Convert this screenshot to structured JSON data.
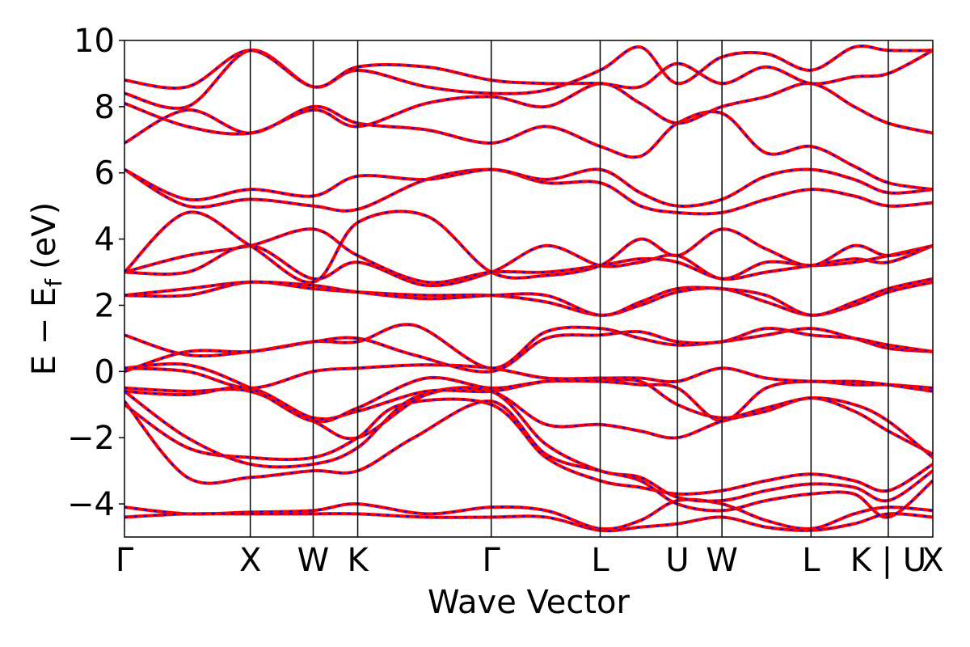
{
  "chart_data": {
    "type": "line",
    "title": "",
    "xlabel": "Wave Vector",
    "ylabel": "E − E",
    "ylabel_subscript": "f",
    "ylabel_unit": "(eV)",
    "ylim": [
      -5,
      10
    ],
    "yticks": [
      -4,
      -2,
      0,
      2,
      4,
      6,
      8,
      10
    ],
    "ytick_labels": [
      "−4",
      "−2",
      "0",
      "2",
      "4",
      "6",
      "8",
      "10"
    ],
    "k_path": {
      "labels": [
        "Γ",
        "X",
        "W",
        "K",
        "Γ",
        "L",
        "U",
        "W",
        "L",
        "K | U",
        "X"
      ],
      "positions": [
        0,
        1,
        1.5,
        1.854,
        2.915,
        3.781,
        4.395,
        4.749,
        5.457,
        6.071,
        6.425
      ]
    },
    "grid": false,
    "legend": "none",
    "series_styles": [
      {
        "color": "#ff0000",
        "linestyle": "solid"
      },
      {
        "color": "#0000ff",
        "linestyle": "dashed"
      }
    ],
    "bands": [
      {
        "x": [
          0,
          0.5,
          1,
          1.5,
          1.854,
          2.4,
          2.915,
          3.35,
          3.781,
          4.1,
          4.395,
          4.749,
          5.1,
          5.457,
          5.8,
          6.071,
          6.425
        ],
        "y": [
          -4.1,
          -4.3,
          -4.25,
          -4.2,
          -4.0,
          -4.3,
          -4.1,
          -4.2,
          -4.75,
          -4.5,
          -3.9,
          -4.0,
          -4.5,
          -4.75,
          -4.3,
          -4.1,
          -4.2
        ]
      },
      {
        "x": [
          0,
          0.5,
          1,
          1.5,
          1.854,
          2.4,
          2.915,
          3.35,
          3.781,
          4.1,
          4.395,
          4.749,
          5.1,
          5.457,
          5.8,
          6.071,
          6.425
        ],
        "y": [
          -4.4,
          -4.3,
          -4.3,
          -4.3,
          -4.3,
          -4.4,
          -4.4,
          -4.4,
          -4.8,
          -4.7,
          -4.6,
          -4.4,
          -4.7,
          -4.8,
          -4.6,
          -4.3,
          -4.4
        ]
      },
      {
        "x": [
          0,
          0.5,
          1,
          1.5,
          1.854,
          2.2,
          2.915,
          3.35,
          3.781,
          4.1,
          4.395,
          4.749,
          5.1,
          5.457,
          5.8,
          6.071,
          6.425
        ],
        "y": [
          -1.0,
          -2.3,
          -2.6,
          -2.6,
          -2.0,
          -1.0,
          -1.0,
          -2.6,
          -3.3,
          -3.5,
          -3.7,
          -3.6,
          -3.3,
          -3.1,
          -3.3,
          -3.6,
          -2.8
        ]
      },
      {
        "x": [
          0,
          0.5,
          1,
          1.5,
          1.854,
          2.3,
          2.915,
          3.35,
          3.781,
          4.1,
          4.395,
          4.749,
          5.1,
          5.457,
          5.8,
          6.071,
          6.425
        ],
        "y": [
          -0.6,
          -2.0,
          -2.8,
          -2.8,
          -2.3,
          -0.8,
          -0.6,
          -2.2,
          -3.0,
          -3.2,
          -3.8,
          -3.9,
          -3.6,
          -3.4,
          -3.5,
          -3.9,
          -3.0
        ]
      },
      {
        "x": [
          0,
          0.5,
          1,
          1.5,
          1.854,
          2.3,
          2.915,
          3.35,
          3.781,
          4.1,
          4.395,
          4.749,
          5.1,
          5.457,
          5.8,
          6.071,
          6.425
        ],
        "y": [
          -0.9,
          -3.2,
          -3.2,
          -3.0,
          -3.0,
          -2.0,
          -0.9,
          -2.5,
          -3.0,
          -3.3,
          -4.0,
          -4.2,
          -3.9,
          -3.7,
          -3.7,
          -4.4,
          -3.3
        ]
      },
      {
        "x": [
          0,
          0.5,
          1,
          1.5,
          1.854,
          2.4,
          2.915,
          3.35,
          3.781,
          4.1,
          4.395,
          4.749,
          5.1,
          5.457,
          5.8,
          6.071,
          6.425
        ],
        "y": [
          -0.5,
          -0.6,
          -0.6,
          -1.5,
          -2.0,
          -0.7,
          -0.6,
          -1.6,
          -1.6,
          -1.8,
          -2.0,
          -1.5,
          -1.2,
          -0.8,
          -1.2,
          -1.8,
          -2.5
        ]
      },
      {
        "x": [
          0,
          0.5,
          1,
          1.5,
          1.854,
          2.4,
          2.915,
          3.35,
          3.781,
          4.1,
          4.395,
          4.749,
          5.1,
          5.457,
          5.8,
          6.071,
          6.425
        ],
        "y": [
          -0.6,
          -0.7,
          -0.5,
          -1.4,
          -1.2,
          -0.6,
          -0.6,
          -0.3,
          -0.3,
          -0.3,
          -1.0,
          -1.4,
          -1.1,
          -0.8,
          -1.0,
          -1.5,
          -2.6
        ]
      },
      {
        "x": [
          0,
          0.5,
          1,
          1.5,
          1.854,
          2.4,
          2.915,
          3.35,
          3.781,
          4.1,
          4.395,
          4.749,
          5.1,
          5.457,
          5.8,
          6.071,
          6.425
        ],
        "y": [
          0.1,
          0.2,
          -0.5,
          -1.5,
          -1.1,
          -0.2,
          -0.5,
          -0.3,
          -0.3,
          -0.4,
          -0.5,
          -1.5,
          -0.5,
          -0.3,
          -0.4,
          -0.4,
          -0.5
        ]
      },
      {
        "x": [
          0,
          0.5,
          1,
          1.5,
          1.854,
          2.4,
          2.915,
          3.35,
          3.781,
          4.1,
          4.395,
          4.749,
          5.1,
          5.457,
          5.8,
          6.071,
          6.425
        ],
        "y": [
          0.1,
          0.0,
          -0.5,
          0.0,
          0.1,
          0.2,
          0.1,
          -0.2,
          -0.2,
          -0.2,
          -0.3,
          0.1,
          -0.2,
          -0.3,
          -0.3,
          -0.4,
          -0.6
        ]
      },
      {
        "x": [
          0,
          0.5,
          1,
          1.5,
          1.854,
          2.3,
          2.915,
          3.35,
          3.781,
          4.1,
          4.395,
          4.749,
          5.1,
          5.457,
          5.8,
          6.071,
          6.425
        ],
        "y": [
          1.1,
          0.5,
          0.6,
          0.9,
          0.9,
          1.4,
          0.1,
          1.2,
          1.3,
          1.0,
          0.8,
          0.9,
          1.1,
          1.3,
          1.0,
          0.7,
          0.6
        ]
      },
      {
        "x": [
          0,
          0.5,
          1,
          1.5,
          1.854,
          2.3,
          2.915,
          3.35,
          3.781,
          4.1,
          4.395,
          4.749,
          5.1,
          5.457,
          5.8,
          6.071,
          6.425
        ],
        "y": [
          0.0,
          0.6,
          0.6,
          0.9,
          1.0,
          0.5,
          0.0,
          1.0,
          1.1,
          1.2,
          0.9,
          0.9,
          1.3,
          1.1,
          1.0,
          0.8,
          0.6
        ]
      },
      {
        "x": [
          0,
          0.5,
          1,
          1.5,
          1.854,
          2.4,
          2.915,
          3.35,
          3.781,
          4.1,
          4.395,
          4.749,
          5.1,
          5.457,
          5.8,
          6.071,
          6.425
        ],
        "y": [
          2.3,
          2.3,
          2.7,
          2.5,
          2.4,
          2.3,
          2.3,
          2.1,
          1.7,
          2.0,
          2.4,
          2.5,
          2.1,
          1.7,
          2.0,
          2.4,
          2.7
        ]
      },
      {
        "x": [
          0,
          0.5,
          1,
          1.5,
          1.854,
          2.4,
          2.915,
          3.35,
          3.781,
          4.1,
          4.395,
          4.749,
          5.1,
          5.457,
          5.8,
          6.071,
          6.425
        ],
        "y": [
          2.3,
          2.5,
          2.7,
          2.6,
          2.4,
          2.2,
          2.3,
          2.3,
          1.7,
          2.1,
          2.5,
          2.5,
          2.3,
          1.7,
          2.1,
          2.5,
          2.8
        ]
      },
      {
        "x": [
          0,
          0.5,
          1,
          1.5,
          1.854,
          2.4,
          2.915,
          3.35,
          3.781,
          4.1,
          4.395,
          4.749,
          5.1,
          5.457,
          5.8,
          6.071,
          6.425
        ],
        "y": [
          3.0,
          3.0,
          3.8,
          2.8,
          3.3,
          2.6,
          3.0,
          3.8,
          3.2,
          3.3,
          3.5,
          2.8,
          3.3,
          3.2,
          3.3,
          3.5,
          3.8
        ]
      },
      {
        "x": [
          0,
          0.5,
          1,
          1.5,
          1.854,
          2.4,
          2.915,
          3.35,
          3.781,
          4.1,
          4.395,
          4.749,
          5.1,
          5.457,
          5.8,
          6.071,
          6.425
        ],
        "y": [
          3.0,
          3.5,
          3.8,
          4.3,
          3.5,
          2.7,
          3.0,
          3.0,
          3.2,
          3.4,
          3.3,
          2.8,
          3.0,
          3.2,
          3.4,
          3.3,
          3.8
        ]
      },
      {
        "x": [
          0,
          0.5,
          1,
          1.5,
          1.854,
          2.4,
          2.915,
          3.35,
          3.781,
          4.1,
          4.395,
          4.749,
          5.1,
          5.457,
          5.8,
          6.071,
          6.425
        ],
        "y": [
          3.0,
          4.8,
          3.8,
          2.7,
          4.5,
          4.7,
          3.0,
          2.9,
          3.2,
          4.0,
          3.5,
          4.3,
          3.7,
          3.2,
          3.8,
          3.5,
          3.8
        ]
      },
      {
        "x": [
          0,
          0.5,
          1,
          1.5,
          1.854,
          2.4,
          2.915,
          3.35,
          3.781,
          4.1,
          4.395,
          4.749,
          5.1,
          5.457,
          5.8,
          6.071,
          6.425
        ],
        "y": [
          6.1,
          5.0,
          5.2,
          5.0,
          4.9,
          5.8,
          6.1,
          5.7,
          5.7,
          5.0,
          4.8,
          4.8,
          5.2,
          5.5,
          5.3,
          5.0,
          5.1
        ]
      },
      {
        "x": [
          0,
          0.5,
          1,
          1.5,
          1.854,
          2.4,
          2.915,
          3.35,
          3.781,
          4.1,
          4.395,
          4.749,
          5.1,
          5.457,
          5.8,
          6.071,
          6.425
        ],
        "y": [
          6.1,
          5.2,
          5.5,
          5.3,
          5.9,
          5.8,
          6.1,
          5.8,
          6.1,
          5.4,
          5.0,
          5.2,
          5.9,
          6.1,
          5.8,
          5.4,
          5.5
        ]
      },
      {
        "x": [
          0,
          0.5,
          1,
          1.5,
          1.854,
          2.4,
          2.915,
          3.35,
          3.781,
          4.1,
          4.395,
          4.749,
          5.1,
          5.457,
          5.8,
          6.071,
          6.425
        ],
        "y": [
          6.9,
          7.9,
          7.2,
          8.0,
          7.5,
          7.3,
          6.9,
          7.4,
          6.8,
          6.5,
          7.5,
          7.8,
          6.6,
          6.8,
          6.2,
          5.7,
          5.5
        ]
      },
      {
        "x": [
          0,
          0.5,
          1,
          1.5,
          1.854,
          2.4,
          2.915,
          3.35,
          3.781,
          4.1,
          4.395,
          4.749,
          5.1,
          5.457,
          5.8,
          6.071,
          6.425
        ],
        "y": [
          8.1,
          7.4,
          7.2,
          7.9,
          7.4,
          8.1,
          8.3,
          8.0,
          8.7,
          8.1,
          7.5,
          8.0,
          8.3,
          8.7,
          8.0,
          7.5,
          7.2
        ]
      },
      {
        "x": [
          0,
          0.5,
          1,
          1.5,
          1.854,
          2.4,
          2.915,
          3.35,
          3.781,
          4.1,
          4.395,
          4.749,
          5.1,
          5.457,
          5.8,
          6.071,
          6.425
        ],
        "y": [
          8.4,
          8.0,
          9.7,
          8.6,
          9.1,
          8.6,
          8.4,
          8.5,
          9.1,
          9.8,
          8.7,
          9.5,
          9.6,
          9.1,
          9.8,
          9.7,
          9.7
        ]
      },
      {
        "x": [
          0,
          0.5,
          1,
          1.5,
          1.854,
          2.4,
          2.915,
          3.35,
          3.781,
          4.1,
          4.395,
          4.749,
          5.1,
          5.457,
          5.8,
          6.071,
          6.425
        ],
        "y": [
          8.8,
          8.6,
          9.7,
          8.6,
          9.2,
          9.2,
          8.8,
          8.7,
          8.7,
          8.6,
          9.3,
          8.7,
          9.2,
          8.7,
          8.9,
          9.0,
          9.7
        ]
      }
    ]
  }
}
